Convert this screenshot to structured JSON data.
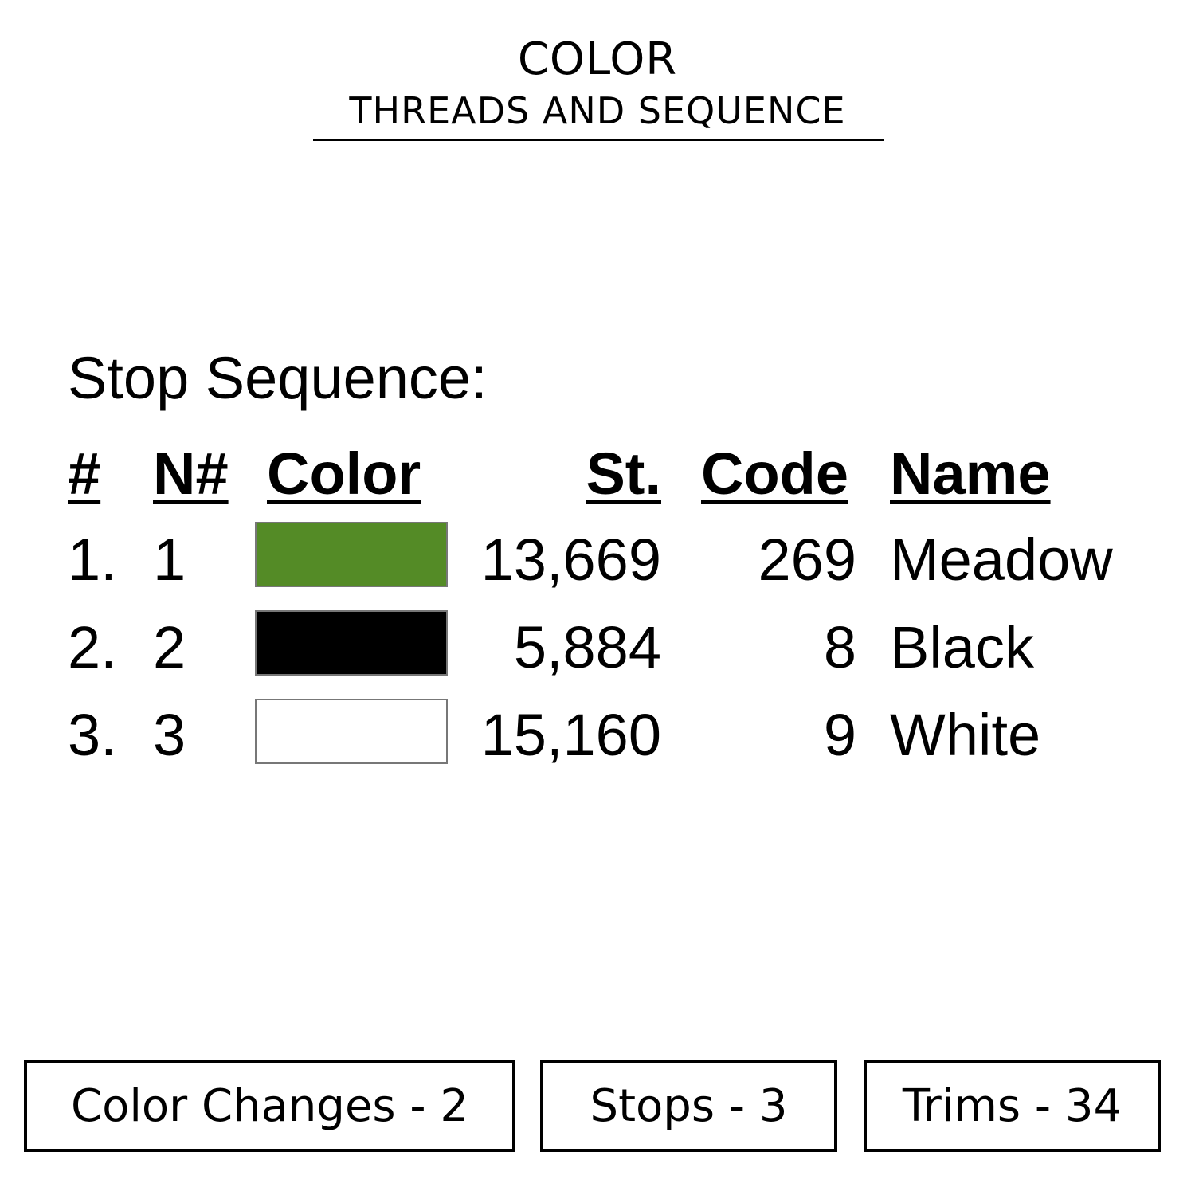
{
  "header": {
    "title": "COLOR",
    "subtitle": "THREADS AND SEQUENCE"
  },
  "sequence": {
    "label": "Stop Sequence:",
    "columns": [
      "#",
      "N#",
      "Color",
      "St.",
      "Code",
      "Name"
    ],
    "rows": [
      {
        "num": "1.",
        "needle": "1",
        "color": "#548b26",
        "stitches": "13,669",
        "code": "269",
        "name": "Meadow"
      },
      {
        "num": "2.",
        "needle": "2",
        "color": "#000000",
        "stitches": "5,884",
        "code": "8",
        "name": "Black"
      },
      {
        "num": "3.",
        "needle": "3",
        "color": "#ffffff",
        "stitches": "15,160",
        "code": "9",
        "name": "White"
      }
    ]
  },
  "stats": {
    "color_changes": "Color Changes - 2",
    "stops": "Stops - 3",
    "trims": "Trims - 34"
  }
}
